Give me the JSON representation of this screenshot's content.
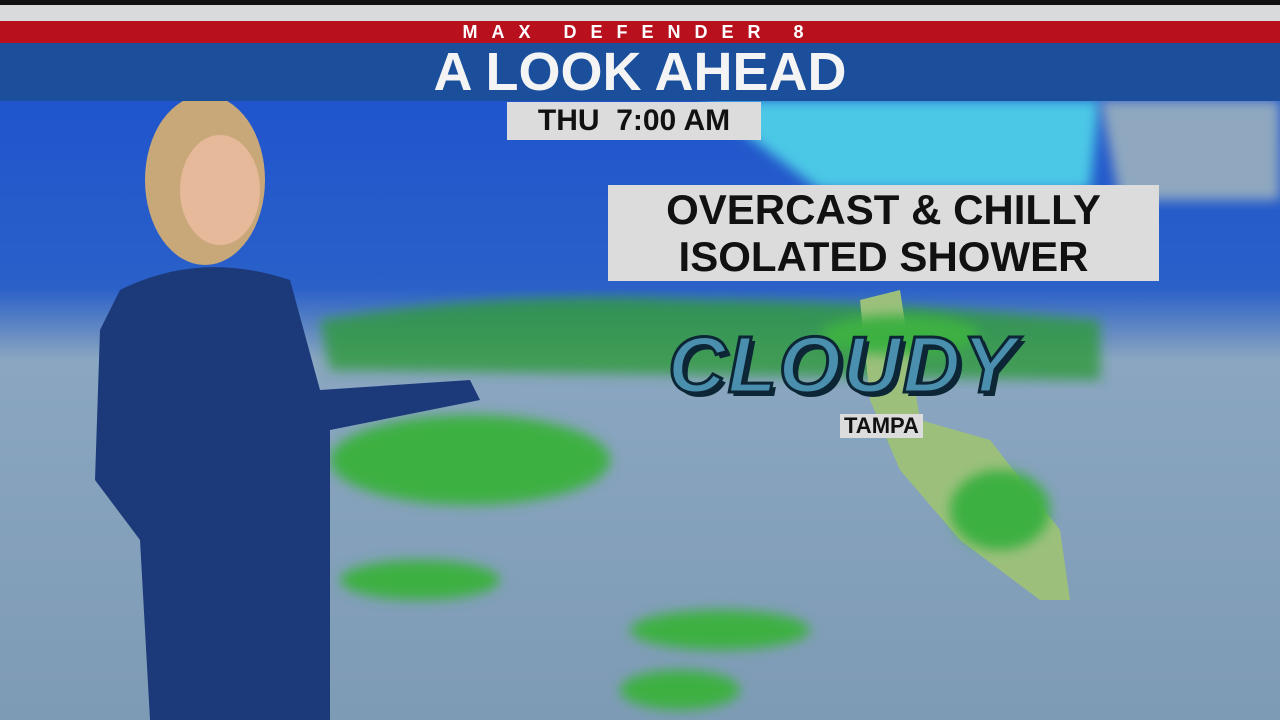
{
  "header": {
    "brand": "MAX DEFENDER 8",
    "title": "A LOOK AHEAD"
  },
  "time": "THU  7:00 AM",
  "conditions": {
    "line1": "OVERCAST & CHILLY",
    "line2": "ISOLATED SHOWER"
  },
  "forecast": {
    "label": "CLOUDY",
    "city": "TAMPA"
  },
  "colors": {
    "red": "#b8101c",
    "blue": "#1b4f9c",
    "panel": "#dcdcdc",
    "radar": "#3cb043"
  }
}
